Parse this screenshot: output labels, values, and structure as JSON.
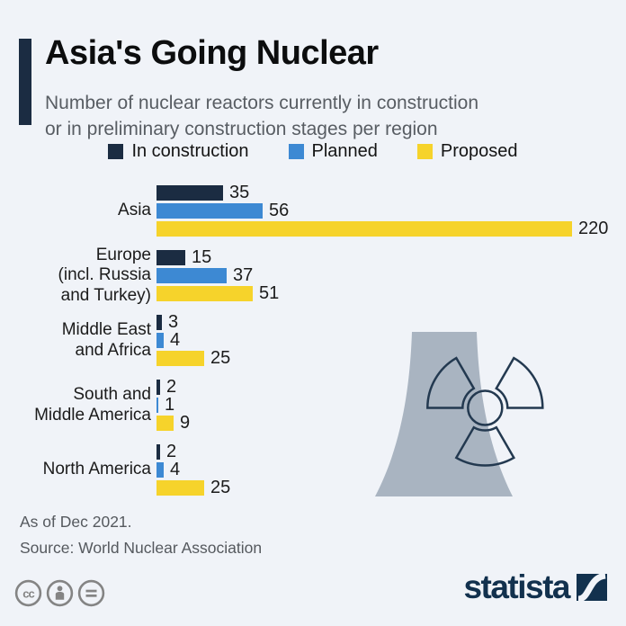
{
  "header": {
    "title": "Asia's Going Nuclear",
    "subtitle_lines": [
      "Number of nuclear reactors currently in construction",
      "or in preliminary construction stages per region"
    ]
  },
  "chart_data": {
    "type": "bar",
    "orientation": "horizontal",
    "title": "Asia's Going Nuclear",
    "categories": [
      "Asia",
      "Europe (incl. Russia and Turkey)",
      "Middle East and Africa",
      "South and Middle America",
      "North America"
    ],
    "category_label_lines": [
      [
        "Asia"
      ],
      [
        "Europe",
        "(incl. Russia",
        "and Turkey)"
      ],
      [
        "Middle East",
        "and Africa"
      ],
      [
        "South and",
        "Middle America"
      ],
      [
        "North America"
      ]
    ],
    "series": [
      {
        "name": "In construction",
        "color": "#1b2c42",
        "values": [
          35,
          15,
          3,
          2,
          2
        ]
      },
      {
        "name": "Planned",
        "color": "#3d89d3",
        "values": [
          56,
          37,
          4,
          1,
          4
        ]
      },
      {
        "name": "Proposed",
        "color": "#f6d32b",
        "values": [
          220,
          51,
          25,
          9,
          25
        ]
      }
    ],
    "xlim": [
      0,
      220
    ],
    "value_labels": true,
    "legend_position": "top",
    "grid": false,
    "axis_shown": false
  },
  "footer": {
    "note": "As of Dec 2021.",
    "source": "Source: World Nuclear Association"
  },
  "branding": {
    "logo_text": "statista",
    "license_icons": [
      "cc-icon",
      "attribution-icon",
      "no-derivatives-icon"
    ]
  },
  "colors": {
    "background": "#f0f3f8",
    "accent_navy": "#1b2c42",
    "planned_blue": "#3d89d3",
    "proposed_yellow": "#f6d32b",
    "subtitle_gray": "#585d63",
    "tower_gray": "#a9b4c1",
    "trefoil_navy": "#233950",
    "logo_navy": "#12314e",
    "license_gray": "#848484"
  }
}
